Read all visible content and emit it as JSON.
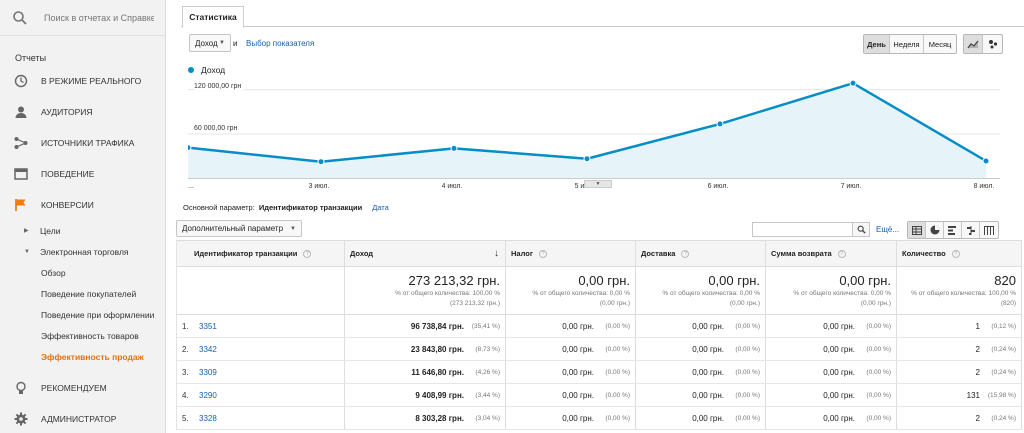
{
  "search": {
    "placeholder": "Поиск в отчетах и Справке"
  },
  "sidebar": {
    "section_label": "Отчеты",
    "items": [
      {
        "label": "В РЕЖИМЕ РЕАЛЬНОГО",
        "icon": "clock-icon"
      },
      {
        "label": "АУДИТОРИЯ",
        "icon": "person-icon"
      },
      {
        "label": "ИСТОЧНИКИ ТРАФИКА",
        "icon": "acquisition-icon"
      },
      {
        "label": "ПОВЕДЕНИЕ",
        "icon": "behavior-icon"
      },
      {
        "label": "КОНВЕРСИИ",
        "icon": "flag-icon"
      }
    ],
    "sub_items": [
      "Цели",
      "Электронная торговля"
    ],
    "ecommerce_items": [
      "Обзор",
      "Поведение покупателей",
      "Поведение при оформлении",
      "Эффективность товаров",
      "Эффективность продаж"
    ],
    "bottom_items": [
      {
        "label": "РЕКОМЕНДУЕМ",
        "icon": "lightbulb-icon"
      },
      {
        "label": "АДМИНИСТРАТОР",
        "icon": "gear-icon"
      }
    ]
  },
  "tab": {
    "label": "Статистика"
  },
  "controls": {
    "metric_select": "Доход",
    "and_text": "и",
    "choose_metric": "Выбор показателя",
    "periods": [
      "День",
      "Неделя",
      "Месяц"
    ],
    "active_period": "День"
  },
  "chart_data": {
    "type": "area",
    "legend": "Доход",
    "color": "#058dc7",
    "y_ticks": [
      "120 000,00 грн",
      "60 000,00 грн"
    ],
    "x_labels": [
      "...",
      "3 июл.",
      "4 июл.",
      "5 июл.",
      "6 июл.",
      "7 июл.",
      "8 июл."
    ],
    "values": [
      41000,
      22000,
      40000,
      26000,
      73000,
      128000,
      23000
    ]
  },
  "dimension": {
    "label": "Основной параметр:",
    "active": "Идентификатор транзакции",
    "other": "Дата"
  },
  "secondary_dim": "Дополнительный параметр",
  "more_link": "Ещё...",
  "table": {
    "headers": [
      "Идентификатор транзакции",
      "Доход",
      "Налог",
      "Доставка",
      "Сумма возврата",
      "Количество"
    ],
    "totals": [
      {
        "value": "273 213,32 грн.",
        "sub1": "% от общего количества: 100,00 %",
        "sub2": "(273 213,32 грн.)"
      },
      {
        "value": "0,00 грн.",
        "sub1": "% от общего количества: 0,00 %",
        "sub2": "(0,00 грн.)"
      },
      {
        "value": "0,00 грн.",
        "sub1": "% от общего количества: 0,00 %",
        "sub2": "(0,00 грн.)"
      },
      {
        "value": "0,00 грн.",
        "sub1": "% от общего количества: 0,00 %",
        "sub2": "(0,00 грн.)"
      },
      {
        "value": "820",
        "sub1": "% от общего количества: 100,00 %",
        "sub2": "(820)"
      }
    ],
    "rows": [
      {
        "idx": "1.",
        "id": "3351",
        "revenue": "96 738,84 грн.",
        "revenue_pct": "(35,41 %)",
        "tax": "0,00 грн.",
        "tax_pct": "(0,00 %)",
        "ship": "0,00 грн.",
        "ship_pct": "(0,00 %)",
        "refund": "0,00 грн.",
        "refund_pct": "(0,00 %)",
        "qty": "1",
        "qty_pct": "(0,12 %)"
      },
      {
        "idx": "2.",
        "id": "3342",
        "revenue": "23 843,80 грн.",
        "revenue_pct": "(8,73 %)",
        "tax": "0,00 грн.",
        "tax_pct": "(0,00 %)",
        "ship": "0,00 грн.",
        "ship_pct": "(0,00 %)",
        "refund": "0,00 грн.",
        "refund_pct": "(0,00 %)",
        "qty": "2",
        "qty_pct": "(0,24 %)"
      },
      {
        "idx": "3.",
        "id": "3309",
        "revenue": "11 646,80 грн.",
        "revenue_pct": "(4,26 %)",
        "tax": "0,00 грн.",
        "tax_pct": "(0,00 %)",
        "ship": "0,00 грн.",
        "ship_pct": "(0,00 %)",
        "refund": "0,00 грн.",
        "refund_pct": "(0,00 %)",
        "qty": "2",
        "qty_pct": "(0,24 %)"
      },
      {
        "idx": "4.",
        "id": "3290",
        "revenue": "9 408,99 грн.",
        "revenue_pct": "(3,44 %)",
        "tax": "0,00 грн.",
        "tax_pct": "(0,00 %)",
        "ship": "0,00 грн.",
        "ship_pct": "(0,00 %)",
        "refund": "0,00 грн.",
        "refund_pct": "(0,00 %)",
        "qty": "131",
        "qty_pct": "(15,98 %)"
      },
      {
        "idx": "5.",
        "id": "3328",
        "revenue": "8 303,28 грн.",
        "revenue_pct": "(3,04 %)",
        "tax": "0,00 грн.",
        "tax_pct": "(0,00 %)",
        "ship": "0,00 грн.",
        "ship_pct": "(0,00 %)",
        "refund": "0,00 грн.",
        "refund_pct": "(0,00 %)",
        "qty": "2",
        "qty_pct": "(0,24 %)"
      }
    ]
  }
}
